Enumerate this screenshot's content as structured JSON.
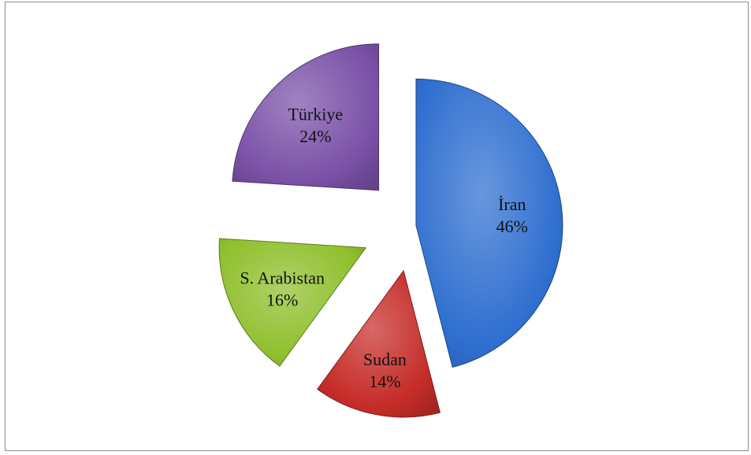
{
  "chart_data": {
    "type": "pie",
    "title": "",
    "exploded": true,
    "slices": [
      {
        "label": "İran",
        "value": 46,
        "value_label": "46%",
        "color": "#2f6fd0"
      },
      {
        "label": "Sudan",
        "value": 14,
        "value_label": "14%",
        "color": "#c62d29"
      },
      {
        "label": "S. Arabistan",
        "value": 16,
        "value_label": "16%",
        "color": "#8fbf2c"
      },
      {
        "label": "Türkiye",
        "value": 24,
        "value_label": "24%",
        "color": "#7b52a8"
      }
    ]
  }
}
